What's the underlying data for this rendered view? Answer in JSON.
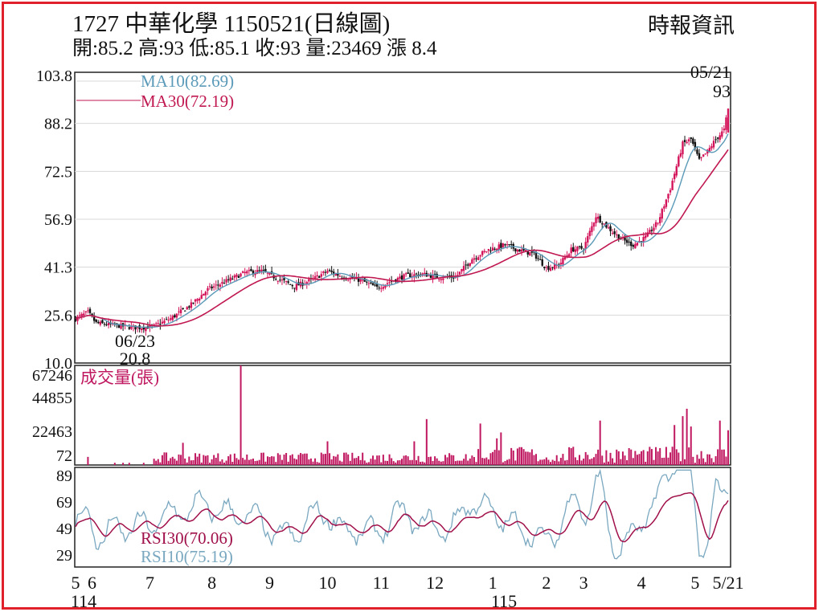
{
  "header": {
    "title": "1727 中華化學 1150521(日線圖)",
    "source": "時報資訊",
    "quote": "開:85.2 高:93 低:85.1 收:93 量:23469 漲 8.4"
  },
  "colors": {
    "up": "#d4145a",
    "down": "#111111",
    "ma10": "#5a9ab8",
    "ma30": "#c01850",
    "volume": "#c01860",
    "rsi30": "#a0104a",
    "rsi10": "#7aa8c0",
    "border": "#e0202a",
    "grid": "#d8d8d8"
  },
  "chart_data": [
    {
      "type": "candlestick",
      "ylim": [
        10.0,
        103.8
      ],
      "yticks": [
        "103.8",
        "88.2",
        "72.5",
        "56.9",
        "41.3",
        "25.6",
        "10.0"
      ],
      "legend": [
        "MA10(82.69)",
        "MA30(72.19)"
      ],
      "annotations": [
        {
          "date": "05/21",
          "label": "93"
        },
        {
          "date": "06/23",
          "label": "20.8"
        }
      ],
      "close_keypoints": [
        {
          "i": 0,
          "v": 24.5
        },
        {
          "i": 6,
          "v": 26.5
        },
        {
          "i": 10,
          "v": 23.0
        },
        {
          "i": 30,
          "v": 21.5
        },
        {
          "i": 38,
          "v": 22.0
        },
        {
          "i": 46,
          "v": 24.5
        },
        {
          "i": 56,
          "v": 29.0
        },
        {
          "i": 64,
          "v": 34.0
        },
        {
          "i": 74,
          "v": 37.0
        },
        {
          "i": 82,
          "v": 39.5
        },
        {
          "i": 90,
          "v": 40.0
        },
        {
          "i": 98,
          "v": 37.5
        },
        {
          "i": 106,
          "v": 35.0
        },
        {
          "i": 114,
          "v": 37.0
        },
        {
          "i": 122,
          "v": 40.0
        },
        {
          "i": 130,
          "v": 38.0
        },
        {
          "i": 138,
          "v": 37.0
        },
        {
          "i": 146,
          "v": 34.5
        },
        {
          "i": 152,
          "v": 36.5
        },
        {
          "i": 160,
          "v": 38.5
        },
        {
          "i": 168,
          "v": 39.0
        },
        {
          "i": 176,
          "v": 38.0
        },
        {
          "i": 184,
          "v": 38.0
        },
        {
          "i": 192,
          "v": 44.0
        },
        {
          "i": 200,
          "v": 47.0
        },
        {
          "i": 208,
          "v": 48.5
        },
        {
          "i": 214,
          "v": 47.0
        },
        {
          "i": 222,
          "v": 45.5
        },
        {
          "i": 228,
          "v": 41.0
        },
        {
          "i": 234,
          "v": 42.0
        },
        {
          "i": 240,
          "v": 47.0
        },
        {
          "i": 246,
          "v": 47.5
        },
        {
          "i": 252,
          "v": 58.0
        },
        {
          "i": 258,
          "v": 54.0
        },
        {
          "i": 264,
          "v": 50.5
        },
        {
          "i": 270,
          "v": 48.5
        },
        {
          "i": 276,
          "v": 51.0
        },
        {
          "i": 282,
          "v": 56.0
        },
        {
          "i": 288,
          "v": 67.0
        },
        {
          "i": 294,
          "v": 81.5
        },
        {
          "i": 298,
          "v": 83.0
        },
        {
          "i": 302,
          "v": 76.0
        },
        {
          "i": 306,
          "v": 79.0
        },
        {
          "i": 310,
          "v": 83.0
        },
        {
          "i": 314,
          "v": 86.0
        },
        {
          "i": 316,
          "v": 93.0
        }
      ]
    },
    {
      "type": "bar",
      "label": "成交量(張)",
      "ylim": [
        0,
        67246
      ],
      "yticks": [
        "67246",
        "44855",
        "22463",
        "72"
      ],
      "spikes": [
        {
          "i": 6,
          "v": 5500
        },
        {
          "i": 80,
          "v": 67246
        },
        {
          "i": 52,
          "v": 15000
        },
        {
          "i": 122,
          "v": 16000
        },
        {
          "i": 164,
          "v": 16000
        },
        {
          "i": 170,
          "v": 31000
        },
        {
          "i": 196,
          "v": 28000
        },
        {
          "i": 204,
          "v": 18000
        },
        {
          "i": 206,
          "v": 22000
        },
        {
          "i": 254,
          "v": 30000
        },
        {
          "i": 290,
          "v": 27000
        },
        {
          "i": 294,
          "v": 33000
        },
        {
          "i": 296,
          "v": 38000
        },
        {
          "i": 298,
          "v": 26000
        },
        {
          "i": 312,
          "v": 30000
        },
        {
          "i": 316,
          "v": 23469
        }
      ]
    },
    {
      "type": "line",
      "ylim": [
        20,
        95
      ],
      "yticks": [
        "89",
        "69",
        "49",
        "29"
      ],
      "legend": [
        "RSI30(70.06)",
        "RSI10(75.19)"
      ]
    }
  ],
  "x_axis": {
    "month_labels": [
      {
        "label": "5",
        "i": 0
      },
      {
        "label": "6",
        "i": 8
      },
      {
        "label": "7",
        "i": 36
      },
      {
        "label": "8",
        "i": 66
      },
      {
        "label": "9",
        "i": 94
      },
      {
        "label": "10",
        "i": 122
      },
      {
        "label": "11",
        "i": 148
      },
      {
        "label": "12",
        "i": 174
      },
      {
        "label": "1",
        "i": 202
      },
      {
        "label": "2",
        "i": 228
      },
      {
        "label": "3",
        "i": 246
      },
      {
        "label": "4",
        "i": 274
      },
      {
        "label": "5",
        "i": 300
      },
      {
        "label": "5/21",
        "i": 316
      }
    ],
    "year_labels": [
      {
        "label": "114",
        "i": 0
      },
      {
        "label": "115",
        "i": 202
      }
    ]
  }
}
